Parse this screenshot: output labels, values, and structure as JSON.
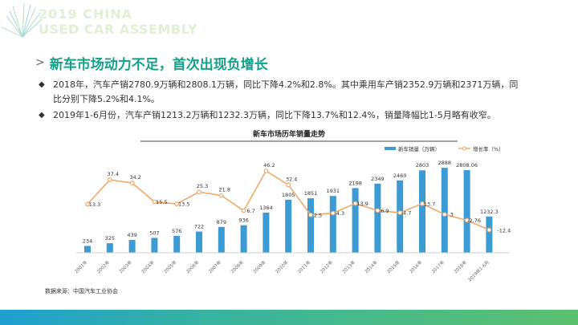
{
  "brand": {
    "line1": "2019 CHINA",
    "line2": "USED CAR ASSEMBLY"
  },
  "title": {
    "chevron": ">",
    "text": "新车市场动力不足，首次出现负增长"
  },
  "bullets": [
    {
      "marker": "◆",
      "text": "2018年，汽车产销2780.9万辆和2808.1万辆，同比下降4.2%和2.8%。其中乘用车产销2352.9万辆和2371万辆，同比分别下降5.2%和4.1%。"
    },
    {
      "marker": "◆",
      "text": "2019年1-6月份，汽车产销1213.2万辆和1232.3万辆，同比下降13.7%和12.4%，销量降幅比1-5月略有收窄。"
    }
  ],
  "source": "数据来源：中国汽车工业协会",
  "colors": {
    "bar": "#3d9bd4",
    "line": "#f0a86a",
    "title": "#14a18a",
    "bottom": "#37b3a0"
  },
  "chart_data": {
    "type": "bar+line",
    "title": "新车市场历年销量走势",
    "categories": [
      "2001年",
      "2002年",
      "2003年",
      "2004年",
      "2005年",
      "2006年",
      "2007年",
      "2008年",
      "2009年",
      "2010年",
      "2011年",
      "2012年",
      "2013年",
      "2014年",
      "2015年",
      "2016年",
      "2017年",
      "2018年",
      "2019年1-6月"
    ],
    "series": [
      {
        "name": "新车销量（万辆）",
        "type": "bar",
        "values": [
          234,
          325,
          439,
          507,
          576,
          722,
          879,
          936,
          1364,
          1805,
          1851,
          1931,
          2198,
          2349,
          2460,
          2803,
          2888,
          2808.06,
          1232.3
        ],
        "labels": [
          "234",
          "325",
          "439",
          "507",
          "576",
          "722",
          "879",
          "936",
          "1364",
          "1805",
          "1851",
          "1931",
          "2198",
          "2349",
          "2460",
          "2803",
          "2888",
          "2808.06",
          "1232.3"
        ]
      },
      {
        "name": "增长率（%）",
        "type": "line",
        "values": [
          13.3,
          37.4,
          34.2,
          15.5,
          13.5,
          25.3,
          21.8,
          6.7,
          46.2,
          32.4,
          2.5,
          4.3,
          13.9,
          6.9,
          4.7,
          13.7,
          3,
          -2.76,
          -12.4
        ],
        "labels": [
          "13.3",
          "37.4",
          "34.2",
          "15.5",
          "13.5",
          "25.3",
          "21.8",
          "6.7",
          "46.2",
          "32.4",
          "2.5",
          "4.3",
          "13.9",
          "6.9",
          "4.7",
          "13.7",
          "3",
          "-2.76",
          "-12.4"
        ]
      }
    ],
    "legend": "top-right",
    "grid": false
  }
}
